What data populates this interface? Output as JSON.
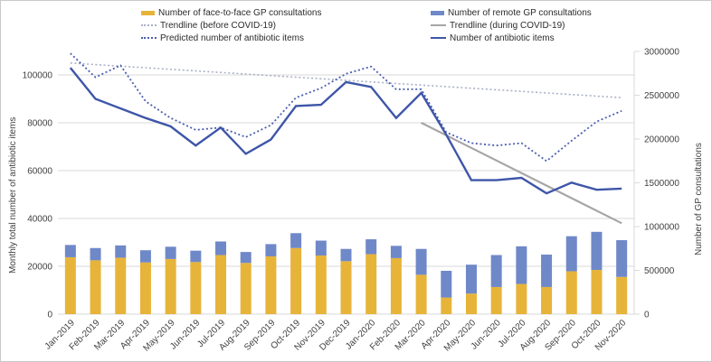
{
  "chart_data": {
    "type": "combo-stacked-bar-and-line",
    "categories": [
      "Jan-2019",
      "Feb-2019",
      "Mar-2019",
      "Apr-2019",
      "May-2019",
      "Jun-2019",
      "Jul-2019",
      "Aug-2019",
      "Sep-2019",
      "Oct-2019",
      "Nov-2019",
      "Dec-2019",
      "Jan-2020",
      "Feb-2020",
      "Mar-2020",
      "Apr-2020",
      "May-2020",
      "Jun-2020",
      "Jul-2020",
      "Aug-2020",
      "Sep-2020",
      "Oct-2020",
      "Nov-2020"
    ],
    "bar_series": [
      {
        "id": "face-to-face-bars",
        "name": "Number of face-to-face GP consultations",
        "color": "#E7B43A",
        "axis": "right",
        "values": [
          650000,
          615000,
          645000,
          590000,
          630000,
          595000,
          675000,
          585000,
          660000,
          755000,
          670000,
          605000,
          685000,
          640000,
          450000,
          190000,
          235000,
          310000,
          345000,
          310000,
          490000,
          505000,
          425000
        ]
      },
      {
        "id": "remote-bars",
        "name": "Number of remote GP consultations",
        "color": "#6F88C8",
        "axis": "right",
        "values": [
          140000,
          140000,
          140000,
          140000,
          140000,
          130000,
          155000,
          125000,
          140000,
          170000,
          170000,
          140000,
          170000,
          140000,
          295000,
          305000,
          330000,
          365000,
          430000,
          370000,
          400000,
          435000,
          420000
        ]
      }
    ],
    "line_series": [
      {
        "id": "trendline-before-covid",
        "name": "Trendline (before COVID-19)",
        "color": "#ABB1C8",
        "dash": true,
        "axis": "left",
        "width": 1.6,
        "x_index": [
          0,
          22
        ],
        "values": [
          105000,
          90500
        ]
      },
      {
        "id": "trendline-during-covid",
        "name": "Trendline (during COVID-19)",
        "color": "#A6A6A6",
        "dash": false,
        "axis": "left",
        "width": 2.2,
        "x_index": [
          14,
          22
        ],
        "values": [
          80000,
          38000
        ]
      },
      {
        "id": "predicted-antibiotic-items-line",
        "name": "Predicted number of antibiotic items",
        "color": "#4A5EAE",
        "dash": true,
        "axis": "left",
        "width": 1.8,
        "values": [
          109000,
          99000,
          104000,
          89000,
          82000,
          77000,
          78000,
          74000,
          79000,
          90500,
          94500,
          100500,
          103500,
          94000,
          94000,
          76000,
          71500,
          70500,
          71500,
          64000,
          72500,
          80500,
          85000
        ]
      },
      {
        "id": "antibiotic-items-line",
        "name": "Number of antibiotic items",
        "color": "#3E56A8",
        "dash": false,
        "axis": "left",
        "width": 2.4,
        "values": [
          103000,
          90000,
          86000,
          82000,
          78500,
          70500,
          78000,
          67000,
          73000,
          87000,
          87500,
          97000,
          95000,
          82000,
          92500,
          75000,
          56000,
          56000,
          57000,
          50500,
          55000,
          52000,
          52500
        ]
      }
    ],
    "left_axis": {
      "title": "Monthly total number of antibiotic items",
      "min": 0,
      "max": 100000,
      "step": 20000,
      "tick_labels": [
        "0",
        "20000",
        "40000",
        "60000",
        "80000",
        "100000"
      ]
    },
    "right_axis": {
      "title": "Number of GP consultations",
      "min": 0,
      "max": 3000000,
      "step": 500000,
      "tick_labels": [
        "0",
        "500000",
        "1000000",
        "1500000",
        "2000000",
        "2500000",
        "3000000"
      ]
    },
    "legend": {
      "columns": [
        [
          {
            "label": "Number of face-to-face GP consultations",
            "swatch": "bar",
            "color": "#E7B43A"
          },
          {
            "label": "Trendline (before COVID-19)",
            "swatch": "dotted",
            "color": "#ABB1C8"
          },
          {
            "label": "Predicted number of antibiotic items",
            "swatch": "dotted",
            "color": "#4A5EAE"
          }
        ],
        [
          {
            "label": "Number of remote GP consultations",
            "swatch": "bar",
            "color": "#6F88C8"
          },
          {
            "label": "Trendline (during COVID-19)",
            "swatch": "line",
            "color": "#A6A6A6"
          },
          {
            "label": "Number of antibiotic items",
            "swatch": "line",
            "color": "#3E56A8"
          }
        ]
      ]
    },
    "style": {
      "grid_color": "#D9D9D9",
      "text_color": "#3f3f3f",
      "background": "#FFFFFF",
      "legend_position": "top"
    }
  }
}
